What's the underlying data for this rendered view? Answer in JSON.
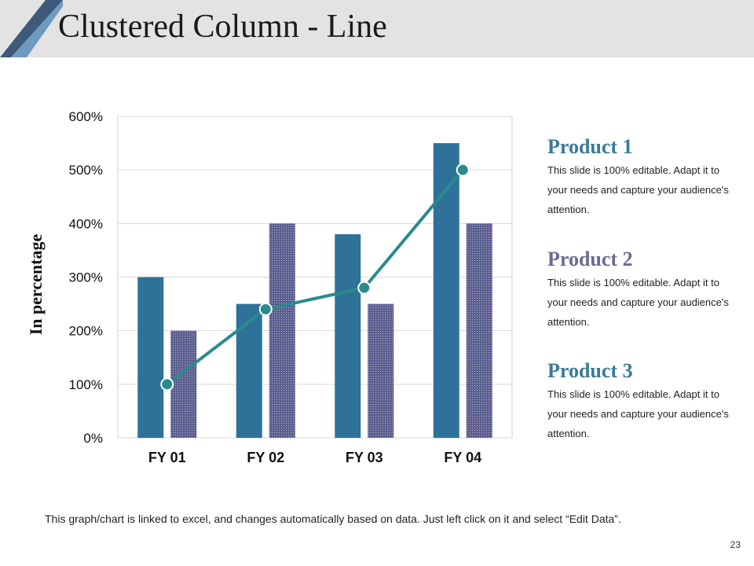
{
  "slide": {
    "title": "Clustered Column - Line",
    "page_number": "23",
    "footnote": "This graph/chart is linked to excel, and changes automatically based on data. Just left click on it and select “Edit Data”."
  },
  "colors": {
    "header_band": "#e3e3e3",
    "accent_dark": "#3e5a7a",
    "accent_light": "#5f8db0",
    "series_1": "#2e7299",
    "series_2": "#5b5e8e",
    "line": "#2b8a8e",
    "product_1": "#3a7a97",
    "product_2": "#6b6b94",
    "product_3": "#3a7a97"
  },
  "products": [
    {
      "heading": "Product 1",
      "description": "This slide is 100% editable. Adapt it to your needs and capture your audience's attention."
    },
    {
      "heading": "Product 2",
      "description": "This slide is 100% editable. Adapt it to your needs and capture your audience's attention."
    },
    {
      "heading": "Product 3",
      "description": "This slide is 100% editable. Adapt it to your needs and capture your audience's attention."
    }
  ],
  "chart_data": {
    "type": "bar",
    "title": "",
    "xlabel": "",
    "ylabel": "In percentage",
    "categories": [
      "FY 01",
      "FY 02",
      "FY 03",
      "FY 04"
    ],
    "ylim": [
      0,
      600
    ],
    "yticks": [
      "0%",
      "100%",
      "200%",
      "300%",
      "400%",
      "500%",
      "600%"
    ],
    "grid": true,
    "series": [
      {
        "name": "Product 1",
        "kind": "bar",
        "values": [
          300,
          250,
          380,
          550
        ]
      },
      {
        "name": "Product 2",
        "kind": "bar",
        "pattern": "dotted",
        "values": [
          200,
          400,
          250,
          400
        ]
      },
      {
        "name": "Product 3",
        "kind": "line",
        "values": [
          100,
          240,
          280,
          500
        ]
      }
    ]
  }
}
